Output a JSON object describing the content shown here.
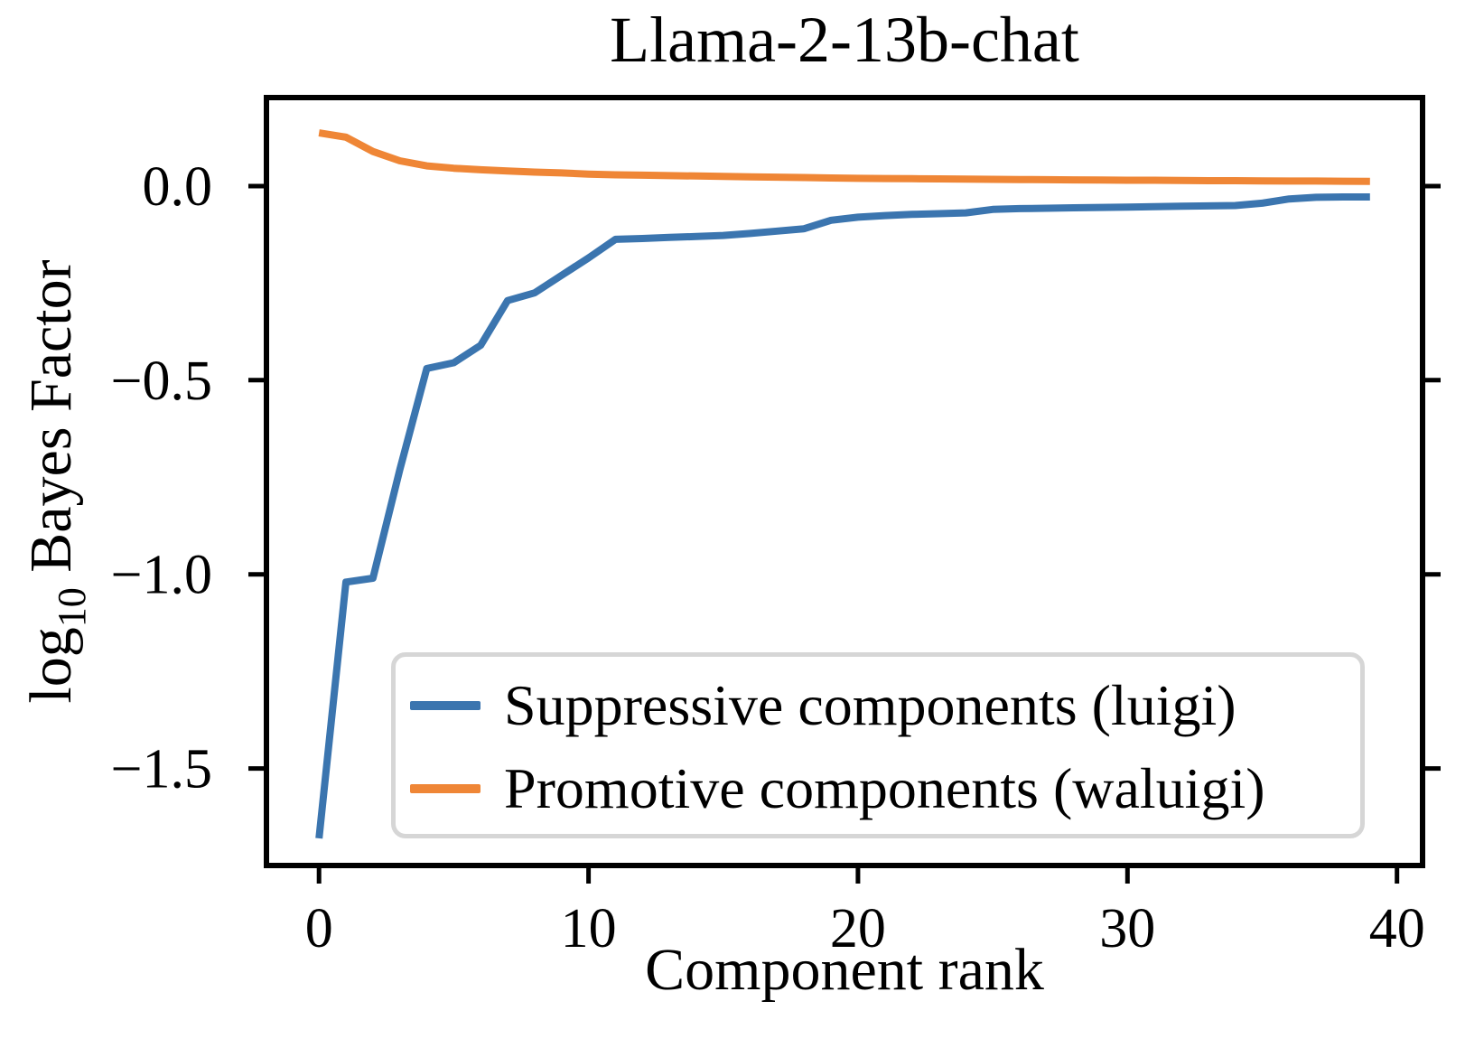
{
  "chart_data": {
    "type": "line",
    "title": "Llama-2-13b-chat",
    "xlabel": "Component rank",
    "ylabel": {
      "prefix": "log",
      "sub": "10",
      "rest": " Bayes Factor"
    },
    "xlim": [
      -1.95,
      40.95
    ],
    "ylim": [
      -1.75,
      0.228
    ],
    "grid": false,
    "legend_position": "lower center",
    "xticks": {
      "values": [
        0,
        10,
        20,
        30,
        40
      ],
      "labels": [
        "0",
        "10",
        "20",
        "30",
        "40"
      ]
    },
    "yticks": {
      "values": [
        0.0,
        -0.5,
        -1.0,
        -1.5
      ],
      "labels": [
        "0.0",
        "−0.5",
        "−1.0",
        "−1.5"
      ]
    },
    "x": [
      0,
      1,
      2,
      3,
      4,
      5,
      6,
      7,
      8,
      9,
      10,
      11,
      12,
      13,
      14,
      15,
      16,
      17,
      18,
      19,
      20,
      21,
      22,
      23,
      24,
      25,
      26,
      27,
      28,
      29,
      30,
      31,
      32,
      33,
      34,
      35,
      36,
      37,
      38,
      39
    ],
    "series": [
      {
        "name": "Suppressive components (luigi)",
        "color": "#3b75af",
        "values": [
          -1.68,
          -1.02,
          -1.01,
          -0.73,
          -0.47,
          -0.455,
          -0.41,
          -0.295,
          -0.275,
          -0.23,
          -0.185,
          -0.137,
          -0.135,
          -0.132,
          -0.13,
          -0.127,
          -0.122,
          -0.116,
          -0.11,
          -0.088,
          -0.08,
          -0.076,
          -0.073,
          -0.071,
          -0.069,
          -0.06,
          -0.058,
          -0.057,
          -0.056,
          -0.055,
          -0.054,
          -0.053,
          -0.052,
          -0.051,
          -0.05,
          -0.044,
          -0.033,
          -0.029,
          -0.028,
          -0.028
        ]
      },
      {
        "name": "Promotive components (waluigi)",
        "color": "#ef8636",
        "values": [
          0.137,
          0.126,
          0.089,
          0.065,
          0.052,
          0.046,
          0.042,
          0.039,
          0.036,
          0.034,
          0.031,
          0.029,
          0.028,
          0.027,
          0.026,
          0.025,
          0.024,
          0.023,
          0.022,
          0.021,
          0.02,
          0.0195,
          0.019,
          0.0185,
          0.018,
          0.0175,
          0.017,
          0.0165,
          0.016,
          0.0155,
          0.015,
          0.015,
          0.0145,
          0.014,
          0.014,
          0.0135,
          0.013,
          0.013,
          0.0125,
          0.012
        ]
      }
    ]
  }
}
